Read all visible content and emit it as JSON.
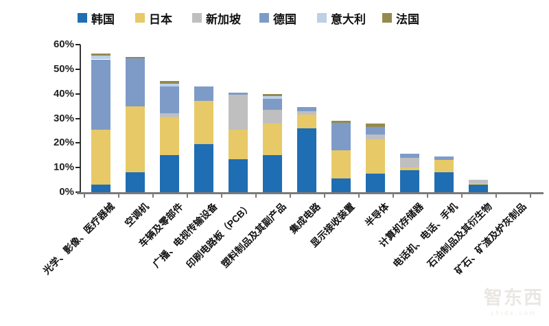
{
  "chart_data": {
    "type": "bar",
    "stacked": true,
    "title": "",
    "xlabel": "",
    "ylabel": "",
    "ylim": [
      0,
      60
    ],
    "yticks": [
      "0%",
      "10%",
      "20%",
      "30%",
      "40%",
      "50%",
      "60%"
    ],
    "grid": false,
    "legend_position": "top",
    "categories": [
      "光学、影像、医疗器械",
      "空调机",
      "车辆及零部件",
      "广播、电视传输设备",
      "印刷电路板（PCB）",
      "塑料制品及其副产品",
      "集成电路",
      "显示接收装置",
      "半导体",
      "计算机存储器",
      "电话机、电话、手机",
      "石油制品及其衍生物",
      "矿石、矿渣及炉灰制品"
    ],
    "series": [
      {
        "name": "韩国",
        "color": "#1F6DB3",
        "values": [
          3,
          8,
          15,
          19.5,
          13.5,
          15,
          26,
          5.5,
          7.5,
          9,
          8,
          3,
          0
        ]
      },
      {
        "name": "日本",
        "color": "#E7C967",
        "values": [
          22.5,
          27,
          15.5,
          17.5,
          12,
          13,
          5.5,
          11.5,
          14,
          1,
          5,
          0.5,
          0
        ]
      },
      {
        "name": "新加坡",
        "color": "#BFBFBF",
        "values": [
          0,
          0,
          1.5,
          0,
          14,
          5.5,
          1.5,
          0,
          2,
          4,
          0,
          1.5,
          0
        ]
      },
      {
        "name": "德国",
        "color": "#7E9BC8",
        "values": [
          28.5,
          19.5,
          11,
          6,
          1,
          4.5,
          1.5,
          11.2,
          3,
          1.5,
          1.5,
          0,
          0
        ]
      },
      {
        "name": "意大利",
        "color": "#BCD0E8",
        "values": [
          1.5,
          0,
          1,
          0,
          0,
          1.2,
          0,
          0,
          0,
          0,
          0,
          0,
          0
        ]
      },
      {
        "name": "法国",
        "color": "#938A4F",
        "values": [
          1,
          0.5,
          1.3,
          0,
          0,
          0.8,
          0,
          0.8,
          1.5,
          0,
          0,
          0,
          0
        ]
      }
    ]
  },
  "watermark": {
    "logo": "智东西",
    "domain": "zhidx.com"
  }
}
